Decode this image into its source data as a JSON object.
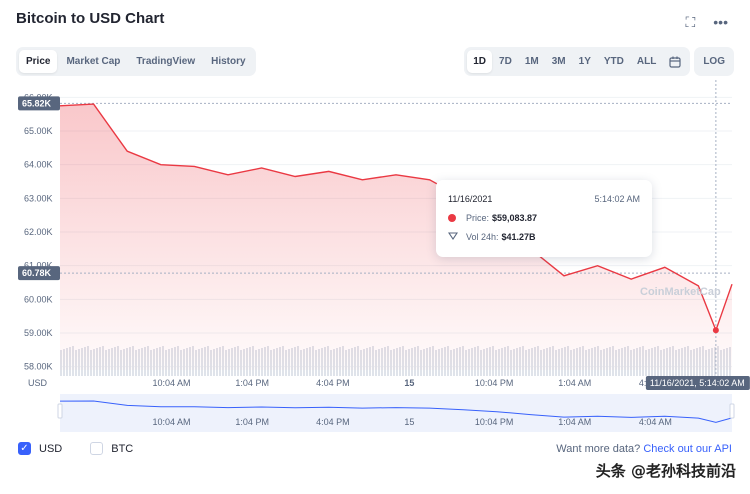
{
  "title": "Bitcoin to USD Chart",
  "icons": {
    "expand": "expand-icon",
    "more": "more-icon",
    "calendar": "calendar-icon"
  },
  "tabs": [
    "Price",
    "Market Cap",
    "TradingView",
    "History"
  ],
  "ranges": [
    "1D",
    "7D",
    "1M",
    "3M",
    "1Y",
    "YTD",
    "ALL"
  ],
  "log_label": "LOG",
  "tooltip": {
    "date": "11/16/2021",
    "time": "5:14:02 AM",
    "price_label": "Price:",
    "price_value": "$59,083.87",
    "vol_label": "Vol 24h:",
    "vol_value": "$41.27B"
  },
  "legend": {
    "usd": "USD",
    "btc": "BTC"
  },
  "api_prefix": "Want more data?",
  "api_link": "Check out our API",
  "watermark": "头条 @老孙科技前沿",
  "chart_watermark": "CoinMarketCap",
  "colors": {
    "line": "#ea3943",
    "accent": "#3861fb",
    "text": "#58667e"
  },
  "chart_data": {
    "type": "line",
    "series": [
      {
        "name": "USD",
        "x": [
          0,
          1.25,
          2.5,
          3.75,
          5,
          6.25,
          7.5,
          8.75,
          10,
          11.25,
          12.5,
          13.75,
          15,
          16.25,
          17.5,
          18.75,
          20,
          21.25,
          22.5,
          23.75,
          24.4,
          25
        ],
        "values": [
          65750,
          65800,
          64400,
          64000,
          63950,
          63700,
          63900,
          63650,
          63800,
          63550,
          63700,
          63550,
          63000,
          62400,
          61500,
          60700,
          61000,
          60600,
          60950,
          60400,
          59080,
          60450
        ]
      }
    ],
    "y_ticks": [
      "58.00K",
      "59.00K",
      "60.00K",
      "61.00K",
      "62.00K",
      "63.00K",
      "64.00K",
      "65.00K",
      "66.00K"
    ],
    "ylim": [
      57900,
      66100
    ],
    "x_ticks": [
      {
        "x": 4.15,
        "label": "10:04 AM"
      },
      {
        "x": 7.15,
        "label": "1:04 PM"
      },
      {
        "x": 10.15,
        "label": "4:04 PM"
      },
      {
        "x": 13.0,
        "label": "15"
      },
      {
        "x": 16.15,
        "label": "10:04 PM"
      },
      {
        "x": 19.15,
        "label": "1:04 AM"
      },
      {
        "x": 22.15,
        "label": "4:04 AM"
      }
    ],
    "xlim": [
      0,
      25
    ],
    "current_price_label": "60.78K",
    "current_price": 60780,
    "high_label": "65.82K",
    "high_price": 65820,
    "cursor_x": 24.4,
    "cursor_label": "11/16/2021, 5:14:02 AM",
    "xlabel": "USD"
  }
}
